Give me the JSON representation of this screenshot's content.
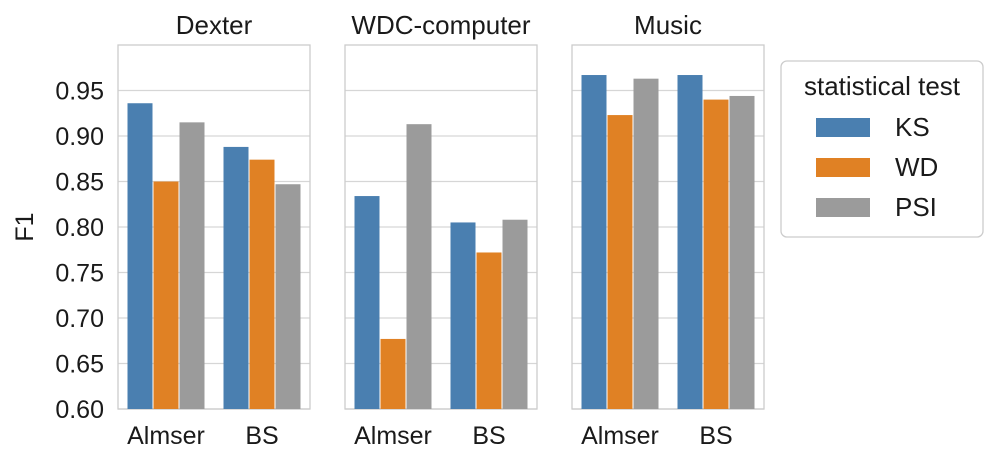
{
  "chart_data": {
    "type": "bar",
    "ylabel": "F1",
    "ylim": [
      0.6,
      1.0
    ],
    "yticks": [
      "0.60",
      "0.65",
      "0.70",
      "0.75",
      "0.80",
      "0.85",
      "0.90",
      "0.95"
    ],
    "yticks_values": [
      0.6,
      0.65,
      0.7,
      0.75,
      0.8,
      0.85,
      0.9,
      0.95
    ],
    "grid": true,
    "categories": [
      "Almser",
      "BS"
    ],
    "legend": {
      "title": "statistical test",
      "position": "right",
      "entries": [
        {
          "name": "KS",
          "color": "#4a7fb0"
        },
        {
          "name": "WD",
          "color": "#e08124"
        },
        {
          "name": "PSI",
          "color": "#9b9b9b"
        }
      ]
    },
    "panels": [
      {
        "title": "Dexter",
        "series": [
          {
            "name": "KS",
            "values": [
              0.936,
              0.888
            ]
          },
          {
            "name": "WD",
            "values": [
              0.85,
              0.874
            ]
          },
          {
            "name": "PSI",
            "values": [
              0.915,
              0.847
            ]
          }
        ]
      },
      {
        "title": "WDC-computer",
        "series": [
          {
            "name": "KS",
            "values": [
              0.834,
              0.805
            ]
          },
          {
            "name": "WD",
            "values": [
              0.677,
              0.772
            ]
          },
          {
            "name": "PSI",
            "values": [
              0.913,
              0.808
            ]
          }
        ]
      },
      {
        "title": "Music",
        "series": [
          {
            "name": "KS",
            "values": [
              0.967,
              0.967
            ]
          },
          {
            "name": "WD",
            "values": [
              0.923,
              0.94
            ]
          },
          {
            "name": "PSI",
            "values": [
              0.963,
              0.944
            ]
          }
        ]
      }
    ]
  }
}
